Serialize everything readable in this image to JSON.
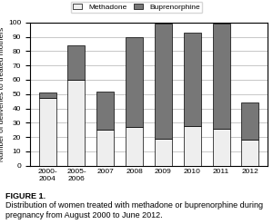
{
  "chart_data": {
    "type": "bar",
    "stacked": true,
    "categories": [
      "2000-\n2004",
      "2005-\n2006",
      "2007",
      "2008",
      "2009",
      "2010",
      "2011",
      "2012"
    ],
    "series": [
      {
        "name": "Methadone",
        "color": "#eeeeee",
        "values": [
          47,
          60,
          25,
          27,
          19,
          28,
          26,
          18
        ]
      },
      {
        "name": "Buprenorphine",
        "color": "#777777",
        "values": [
          4,
          24,
          27,
          63,
          80,
          65,
          73,
          26
        ]
      }
    ],
    "ylabel": "Number of deliveries to treated mothers",
    "ylim": [
      0,
      100
    ],
    "yticks": [
      0,
      10,
      20,
      30,
      40,
      50,
      60,
      70,
      80,
      90,
      100
    ],
    "grid": true,
    "legend": "upper center",
    "annotations": [
      "FIGURE 1.",
      "Distribution of women treated with methadone or buprenorphine during pregnancy from August 2000 to June 2012."
    ]
  }
}
